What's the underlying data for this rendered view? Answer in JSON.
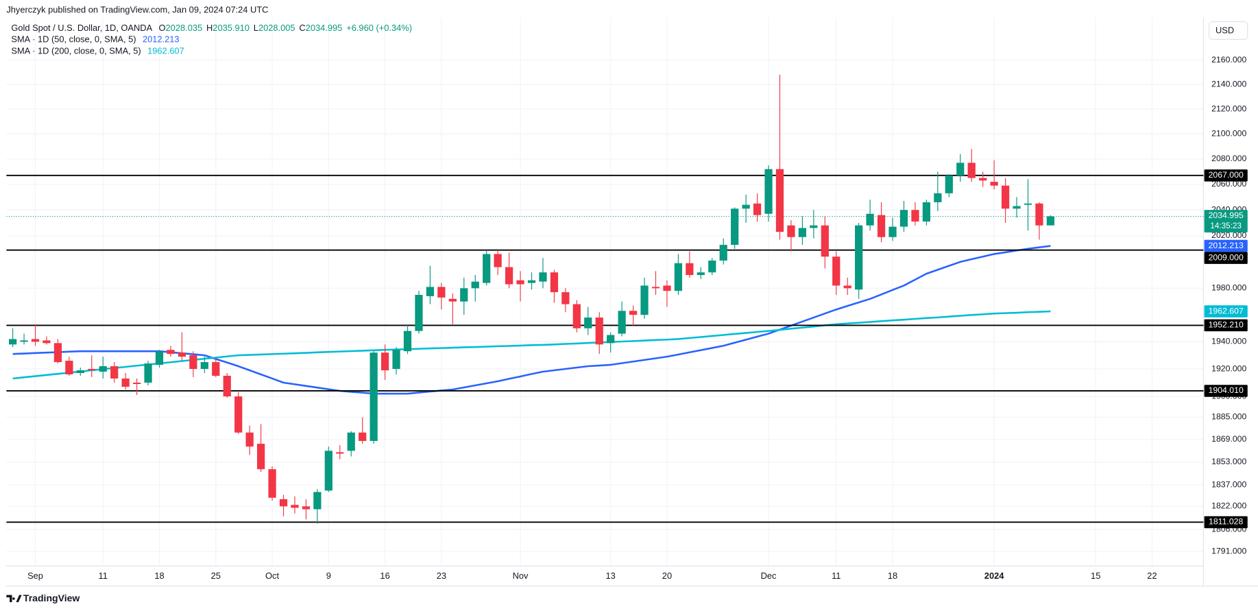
{
  "chart_data": {
    "type": "candlestick",
    "attribution": "Jhyerczyk published on TradingView.com, Jan 09, 2024 07:24 UTC",
    "title": "Gold Spot / U.S. Dollar, 1D, OANDA",
    "ohlc_legend": [
      {
        "key": "O",
        "value": "2028.035"
      },
      {
        "key": "H",
        "value": "2035.910"
      },
      {
        "key": "L",
        "value": "2028.005"
      },
      {
        "key": "C",
        "value": "2034.995"
      }
    ],
    "change": "+6.960 (+0.34%)",
    "currency": "USD",
    "brand": "TradingView",
    "categories": [
      null,
      null,
      "Sep",
      null,
      null,
      null,
      null,
      null,
      "11",
      null,
      null,
      null,
      null,
      "18",
      null,
      null,
      null,
      null,
      "25",
      null,
      null,
      null,
      null,
      "Oct",
      null,
      null,
      null,
      null,
      "9",
      null,
      null,
      null,
      null,
      "16",
      null,
      null,
      null,
      null,
      "23",
      null,
      null,
      null,
      null,
      null,
      null,
      "Nov",
      null,
      null,
      null,
      null,
      null,
      null,
      null,
      "13",
      null,
      null,
      null,
      null,
      "20",
      null,
      null,
      null,
      null,
      null,
      null,
      null,
      null,
      "Dec",
      null,
      null,
      null,
      null,
      null,
      "11",
      null,
      null,
      null,
      null,
      "18",
      null,
      null,
      null,
      null,
      null,
      null,
      null,
      null,
      "2024",
      null,
      null,
      null,
      null,
      null,
      null,
      null,
      null,
      "15",
      null,
      null,
      null,
      null,
      "22",
      null,
      null,
      null,
      null
    ],
    "open": [
      1938,
      1940,
      1942,
      1941,
      1939,
      1926,
      1917,
      1920,
      1918,
      1922,
      1913,
      1910,
      1910,
      1923,
      1934,
      1932,
      1930,
      1920,
      1925,
      1915,
      1900,
      1874,
      1866,
      1848,
      1827,
      1823,
      1822,
      1820,
      1833,
      1860,
      1861,
      1874,
      1868,
      1932,
      1920,
      1933,
      1948,
      1974,
      1981,
      1972,
      1970,
      1980,
      1984,
      2006,
      1996,
      1986,
      1984,
      1985,
      1992,
      1977,
      1968,
      1950,
      1958,
      1939,
      1946,
      1963,
      1960,
      1981,
      1982,
      1978,
      1999,
      1990,
      1992,
      2001,
      2013,
      2041,
      2045,
      2037,
      2072,
      2028,
      2019,
      2026,
      2028,
      2004,
      1982,
      1979,
      2028,
      2036,
      2019,
      2027,
      2040,
      2031,
      2046,
      2053,
      2067,
      2077,
      2065,
      2062,
      2059,
      2041,
      2044,
      2045,
      2028.035,
      null,
      null,
      null,
      null,
      null,
      null,
      null,
      null,
      null,
      null,
      null,
      null,
      null
    ],
    "high": [
      1950,
      1946,
      1953,
      1944,
      1942,
      1929,
      1921,
      1930,
      1929,
      1925,
      1917,
      1913,
      1926,
      1934,
      1937,
      1947,
      1933,
      1929,
      1928,
      1917,
      1903,
      1879,
      1880,
      1850,
      1830,
      1829,
      1827,
      1834,
      1864,
      1865,
      1875,
      1885,
      1933,
      1938,
      1936,
      1953,
      1978,
      1997,
      1984,
      1976,
      1988,
      1990,
      2009,
      2009,
      2007,
      1993,
      1992,
      2003,
      1994,
      1980,
      1971,
      1966,
      1962,
      1947,
      1970,
      1967,
      1988,
      1993,
      1986,
      2006,
      2008,
      1996,
      2003,
      2018,
      2042,
      2052,
      2053,
      2075,
      2148,
      2032,
      2035,
      2040,
      2035,
      2008,
      1988,
      2030,
      2048,
      2046,
      2034,
      2047,
      2046,
      2048,
      2070,
      2068,
      2084,
      2088,
      2070,
      2079,
      2065,
      2050,
      2064,
      2046,
      2035.91,
      null,
      null,
      null,
      null,
      null,
      null,
      null,
      null,
      null,
      null,
      null,
      null,
      null
    ],
    "low": [
      1936,
      1938,
      1937,
      1938,
      1924,
      1915,
      1915,
      1914,
      1913,
      1910,
      1905,
      1901,
      1908,
      1921,
      1929,
      1926,
      1914,
      1917,
      1914,
      1899,
      1873,
      1858,
      1846,
      1826,
      1815,
      1817,
      1813,
      1810,
      1832,
      1855,
      1857,
      1866,
      1866,
      1912,
      1916,
      1931,
      1946,
      1968,
      1964,
      1953,
      1960,
      1970,
      1982,
      1990,
      1980,
      1970,
      1979,
      1980,
      1969,
      1962,
      1947,
      1945,
      1931,
      1932,
      1944,
      1952,
      1957,
      1975,
      1966,
      1975,
      1988,
      1987,
      1990,
      1998,
      2010,
      2030,
      2031,
      2031,
      2017,
      2008,
      2013,
      2018,
      1995,
      1975,
      1975,
      1972,
      2024,
      2015,
      2016,
      2023,
      2028,
      2028,
      2039,
      2050,
      2062,
      2062,
      2058,
      2056,
      2030,
      2034,
      2024,
      2017,
      2028.005,
      null,
      null,
      null,
      null,
      null,
      null,
      null,
      null,
      null,
      null,
      null,
      null,
      null
    ],
    "close": [
      1942,
      1941,
      1940,
      1939,
      1925,
      1916,
      1919,
      1919,
      1922,
      1913,
      1907,
      1909,
      1924,
      1933,
      1931,
      1929,
      1920,
      1925,
      1915,
      1900,
      1874,
      1864,
      1848,
      1828,
      1822,
      1821,
      1820,
      1832,
      1861,
      1859,
      1874,
      1868,
      1932,
      1919,
      1934,
      1948,
      1975,
      1981,
      1973,
      1970,
      1980,
      1985,
      2006,
      1996,
      1983,
      1983,
      1986,
      1992,
      1977,
      1968,
      1950,
      1958,
      1938,
      1945,
      1963,
      1960,
      1982,
      1980,
      1978,
      1999,
      1990,
      1992,
      2001,
      2013,
      2041,
      2044,
      2036,
      2072,
      2023,
      2019,
      2026,
      2028,
      2004,
      1982,
      1980,
      2028,
      2037,
      2019,
      2027,
      2040,
      2031,
      2046,
      2053,
      2067,
      2077,
      2065,
      2063,
      2059,
      2041,
      2043,
      2045,
      2028,
      2034.995,
      null,
      null,
      null,
      null,
      null,
      null,
      null,
      null,
      null,
      null,
      null,
      null,
      null
    ],
    "up_color": "#089981",
    "down_color": "#f23645",
    "series": [
      {
        "name": "SMA · 1D (50, close, 0, SMA, 5)",
        "color": "#2962ff",
        "values": [
          1931,
          1931.3,
          1931.7,
          1932,
          1932.3,
          1932.7,
          1933,
          1933,
          1933,
          1933,
          1933,
          1933,
          1933,
          1933,
          1932.3,
          1931.5,
          1930.8,
          1930,
          1927.3,
          1924.7,
          1922,
          1919,
          1916,
          1913,
          1910,
          1908.8,
          1907.6,
          1906.4,
          1905.2,
          1904,
          1903.3,
          1902.7,
          1902,
          1902,
          1902,
          1902,
          1902.8,
          1903.5,
          1904.3,
          1905,
          1906.5,
          1908,
          1909.5,
          1911,
          1912.8,
          1914.5,
          1916.3,
          1918,
          1919,
          1920,
          1921,
          1922,
          1922.5,
          1923,
          1924.2,
          1925.4,
          1926.6,
          1927.8,
          1929,
          1930.6,
          1932.2,
          1933.8,
          1935.4,
          1937,
          1939.3,
          1941.5,
          1943.8,
          1946,
          1949,
          1952,
          1955,
          1958,
          1961,
          1964,
          1966.7,
          1969.3,
          1972,
          1975.3,
          1978.7,
          1982,
          1986.5,
          1991,
          1994,
          1997,
          2000,
          2002,
          2004,
          2006,
          2007.3,
          2008.7,
          2010,
          2011.1,
          2012.213,
          null,
          null,
          null,
          null,
          null,
          null,
          null,
          null,
          null,
          null,
          null,
          null,
          null
        ]
      },
      {
        "name": "SMA · 1D (200, close, 0, SMA, 5)",
        "color": "#00bcd4",
        "values": [
          1913,
          1913.9,
          1914.7,
          1915.6,
          1916.4,
          1917.3,
          1918.1,
          1919,
          1919.8,
          1920.7,
          1921.5,
          1922.4,
          1923.2,
          1924.1,
          1924.9,
          1925.8,
          1926.6,
          1927.5,
          1928.3,
          1929.2,
          1930,
          1930.3,
          1930.6,
          1930.9,
          1931.2,
          1931.5,
          1931.8,
          1932.2,
          1932.5,
          1932.8,
          1933.1,
          1933.4,
          1933.7,
          1934,
          1934.3,
          1934.5,
          1934.8,
          1935.1,
          1935.3,
          1935.6,
          1935.9,
          1936.1,
          1936.4,
          1936.7,
          1936.9,
          1937.2,
          1937.5,
          1937.7,
          1938,
          1938.4,
          1938.7,
          1939.1,
          1939.5,
          1939.8,
          1940.2,
          1940.5,
          1940.9,
          1941.3,
          1941.6,
          1942,
          1942.8,
          1943.5,
          1944.3,
          1945,
          1945.8,
          1946.5,
          1947.3,
          1948,
          1948.8,
          1949.7,
          1950.5,
          1951.3,
          1952.2,
          1953,
          1953.6,
          1954.1,
          1954.7,
          1955.3,
          1955.9,
          1956.4,
          1957,
          1957.6,
          1958.1,
          1958.7,
          1959.3,
          1959.9,
          1960.4,
          1961,
          1961.3,
          1961.6,
          1962,
          1962.3,
          1962.607,
          null,
          null,
          null,
          null,
          null,
          null,
          null,
          null,
          null,
          null,
          null,
          null,
          null
        ]
      }
    ],
    "hlines": [
      {
        "value": 2067,
        "label": "2067.000"
      },
      {
        "value": 2009,
        "label": "2009.000"
      },
      {
        "value": 1952.21,
        "label": "1952.210"
      },
      {
        "value": 1904.01,
        "label": "1904.010"
      },
      {
        "value": 1811.028,
        "label": "1811.028"
      }
    ],
    "hline_color": "#000000",
    "last_price": 2034.995,
    "countdown": "14:35:23",
    "ylim": [
      1781,
      2210
    ],
    "log_scale": true,
    "grid": true,
    "yticks": [
      {
        "value": 2160,
        "label": "2160.000"
      },
      {
        "value": 2140,
        "label": "2140.000"
      },
      {
        "value": 2120,
        "label": "2120.000"
      },
      {
        "value": 2100,
        "label": "2100.000"
      },
      {
        "value": 2080,
        "label": "2080.000"
      },
      {
        "value": 2060,
        "label": "2060.000"
      },
      {
        "value": 2040,
        "label": "2040.000"
      },
      {
        "value": 2020,
        "label": "2020.000"
      },
      {
        "value": 1980,
        "label": "1980.000"
      },
      {
        "value": 1940,
        "label": "1940.000"
      },
      {
        "value": 1920,
        "label": "1920.000"
      },
      {
        "value": 1900,
        "label": "1900.000"
      },
      {
        "value": 1885,
        "label": "1885.000"
      },
      {
        "value": 1869,
        "label": "1869.000"
      },
      {
        "value": 1853,
        "label": "1853.000"
      },
      {
        "value": 1837,
        "label": "1837.000"
      },
      {
        "value": 1822,
        "label": "1822.000"
      },
      {
        "value": 1806,
        "label": "1806.000"
      },
      {
        "value": 1791,
        "label": "1791.000"
      }
    ]
  }
}
